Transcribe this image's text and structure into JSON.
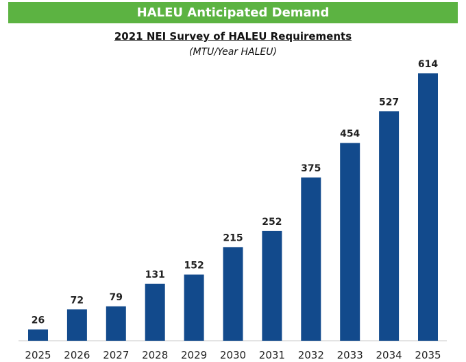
{
  "header": {
    "banner": "HALEU Anticipated Demand"
  },
  "chart_data": {
    "type": "bar",
    "title": "2021 NEI Survey of HALEU Requirements",
    "subtitle": "(MTU/Year HALEU)",
    "categories": [
      "2025",
      "2026",
      "2027",
      "2028",
      "2029",
      "2030",
      "2031",
      "2032",
      "2033",
      "2034",
      "2035"
    ],
    "values": [
      26,
      72,
      79,
      131,
      152,
      215,
      252,
      375,
      454,
      527,
      614
    ],
    "data_labels": [
      "26",
      "72",
      "79",
      "131",
      "152",
      "215",
      "252",
      "375",
      "454",
      "527",
      "614"
    ],
    "xlabel": "",
    "ylabel": "",
    "ylim": [
      0,
      614
    ],
    "bar_color": "#124a8c",
    "grid": false,
    "legend": "none"
  }
}
